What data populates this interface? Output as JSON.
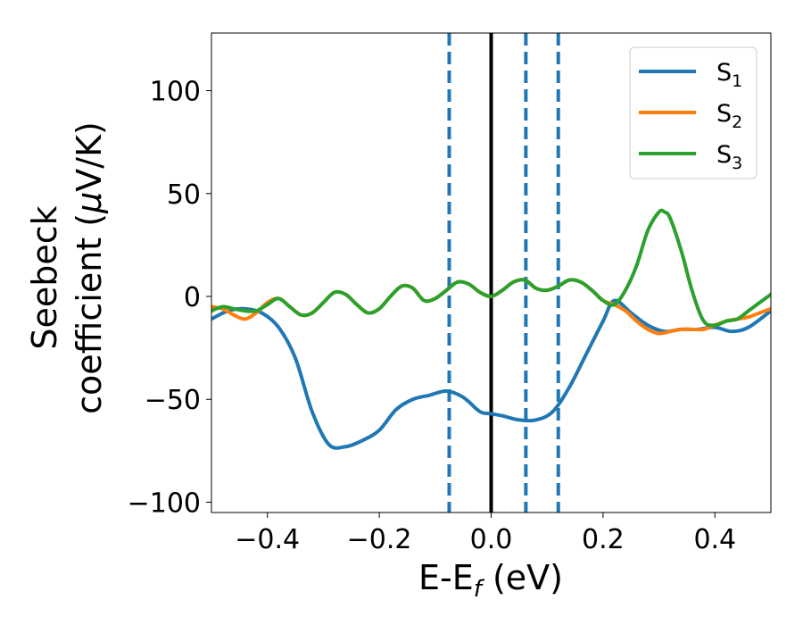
{
  "chart_data": {
    "type": "line",
    "xlabel": {
      "main": "E-E",
      "sub": "f",
      "tail": " (eV)"
    },
    "ylabel": {
      "line1": "Seebeck",
      "line2_prefix": "coefficient  (",
      "mu": "μ",
      "line2_suffix": "V/K)"
    },
    "xlim": [
      -0.5,
      0.5
    ],
    "ylim": [
      -105,
      128
    ],
    "xticks": [
      -0.4,
      -0.2,
      0.0,
      0.2,
      0.4
    ],
    "xtick_labels": [
      "−0.4",
      "−0.2",
      "0.0",
      "0.2",
      "0.4"
    ],
    "yticks": [
      -100,
      -50,
      0,
      50,
      100
    ],
    "ytick_labels": [
      "−100",
      "−50",
      "0",
      "50",
      "100"
    ],
    "grid": false,
    "legend_position": "top-right",
    "vlines": [
      {
        "x": -0.075,
        "style": "dashed",
        "color": "#1f77b4"
      },
      {
        "x": 0.0,
        "style": "solid",
        "color": "#000000"
      },
      {
        "x": 0.062,
        "style": "dashed",
        "color": "#1f77b4"
      },
      {
        "x": 0.12,
        "style": "dashed",
        "color": "#1f77b4"
      }
    ],
    "series": [
      {
        "name": "S",
        "sub": "1",
        "color": "#1f77b4",
        "x": [
          -0.5,
          -0.47,
          -0.44,
          -0.41,
          -0.38,
          -0.35,
          -0.32,
          -0.29,
          -0.26,
          -0.23,
          -0.2,
          -0.17,
          -0.14,
          -0.11,
          -0.08,
          -0.05,
          -0.02,
          0.0,
          0.02,
          0.05,
          0.08,
          0.11,
          0.14,
          0.17,
          0.2,
          0.22,
          0.25,
          0.28,
          0.31,
          0.34,
          0.37,
          0.4,
          0.43,
          0.46,
          0.5
        ],
        "y": [
          -11,
          -7,
          -6,
          -8,
          -15,
          -30,
          -56,
          -72,
          -73,
          -70,
          -65,
          -55,
          -50,
          -48,
          -46,
          -49,
          -56,
          -57,
          -58,
          -60,
          -60,
          -56,
          -44,
          -28,
          -12,
          -2,
          -8,
          -14,
          -17,
          -16,
          -16,
          -15,
          -17,
          -15,
          -7
        ]
      },
      {
        "name": "S",
        "sub": "2",
        "color": "#ff7f0e",
        "x": [
          -0.5,
          -0.48,
          -0.46,
          -0.44,
          -0.42,
          -0.4,
          -0.38,
          -0.36,
          -0.34,
          -0.32,
          -0.3,
          -0.28,
          -0.26,
          -0.24,
          -0.22,
          -0.2,
          -0.18,
          -0.16,
          -0.14,
          -0.12,
          -0.1,
          -0.08,
          -0.06,
          -0.04,
          -0.02,
          0.0,
          0.02,
          0.04,
          0.06,
          0.08,
          0.1,
          0.12,
          0.14,
          0.16,
          0.18,
          0.2,
          0.22,
          0.24,
          0.26,
          0.28,
          0.3,
          0.32,
          0.34,
          0.36,
          0.38,
          0.4,
          0.42,
          0.44,
          0.46,
          0.48,
          0.5
        ],
        "y": [
          -5,
          -6,
          -9,
          -11,
          -8,
          -3,
          -1,
          -5,
          -9,
          -8,
          -3,
          2,
          1,
          -4,
          -8,
          -6,
          0,
          5,
          4,
          -2,
          -1,
          3,
          7,
          6,
          2,
          0,
          3,
          7,
          8,
          4,
          3,
          5,
          8,
          7,
          3,
          -2,
          -4,
          -7,
          -12,
          -16,
          -18,
          -17,
          -16,
          -16,
          -16,
          -14,
          -12,
          -11,
          -10,
          -8,
          -6
        ]
      },
      {
        "name": "S",
        "sub": "3",
        "color": "#2ca02c",
        "x": [
          -0.5,
          -0.48,
          -0.46,
          -0.44,
          -0.42,
          -0.4,
          -0.38,
          -0.36,
          -0.34,
          -0.32,
          -0.3,
          -0.28,
          -0.26,
          -0.24,
          -0.22,
          -0.2,
          -0.18,
          -0.16,
          -0.14,
          -0.12,
          -0.1,
          -0.08,
          -0.06,
          -0.04,
          -0.02,
          0.0,
          0.02,
          0.04,
          0.06,
          0.08,
          0.1,
          0.12,
          0.14,
          0.16,
          0.18,
          0.2,
          0.22,
          0.24,
          0.26,
          0.28,
          0.3,
          0.31,
          0.32,
          0.34,
          0.36,
          0.38,
          0.4,
          0.42,
          0.44,
          0.46,
          0.48,
          0.5
        ],
        "y": [
          -7,
          -5,
          -6,
          -7,
          -7,
          -4,
          -1,
          -5,
          -9,
          -8,
          -3,
          2,
          1,
          -4,
          -8,
          -6,
          0,
          5,
          4,
          -2,
          -1,
          3,
          7,
          6,
          2,
          0,
          3,
          7,
          8,
          4,
          3,
          5,
          8,
          7,
          3,
          -2,
          -4,
          3,
          15,
          32,
          41,
          41,
          38,
          22,
          2,
          -12,
          -14,
          -12,
          -11,
          -7,
          -3,
          1
        ]
      }
    ]
  }
}
